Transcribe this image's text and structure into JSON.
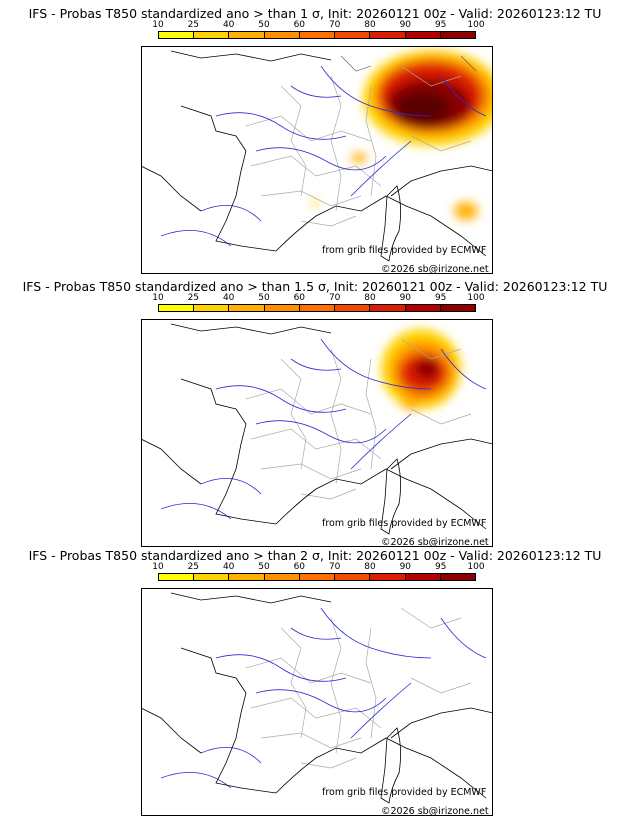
{
  "legend": {
    "ticks": [
      "10",
      "25",
      "40",
      "50",
      "60",
      "70",
      "80",
      "90",
      "95",
      "100"
    ],
    "colors": [
      "#ffff00",
      "#ffd300",
      "#ffb000",
      "#ff9000",
      "#ff7000",
      "#f04b00",
      "#dc1e00",
      "#b40000",
      "#8c0000",
      "#5a0000"
    ]
  },
  "colors": {
    "land_border": "#aaaaaa",
    "coast": "#000000",
    "river": "#2a2ad6"
  },
  "panels": [
    {
      "title": "IFS - Probas T850  standardized ano > than 1 σ, Init: 20260121 00z - Valid: 20260123:12 TU",
      "source": "from grib files provided by ECMWF",
      "copyright": "©2026 sb@irizone.net"
    },
    {
      "title": "IFS - Probas T850  standardized ano > than 1.5 σ, Init: 20260121 00z - Valid: 20260123:12 TU",
      "source": "from grib files provided by ECMWF",
      "copyright": "©2026 sb@irizone.net"
    },
    {
      "title": "IFS - Probas T850  standardized ano > than 2 σ, Init: 20260121 00z - Valid: 20260123:12 TU",
      "source": "from grib files provided by ECMWF",
      "copyright": "©2026 sb@irizone.net"
    }
  ]
}
